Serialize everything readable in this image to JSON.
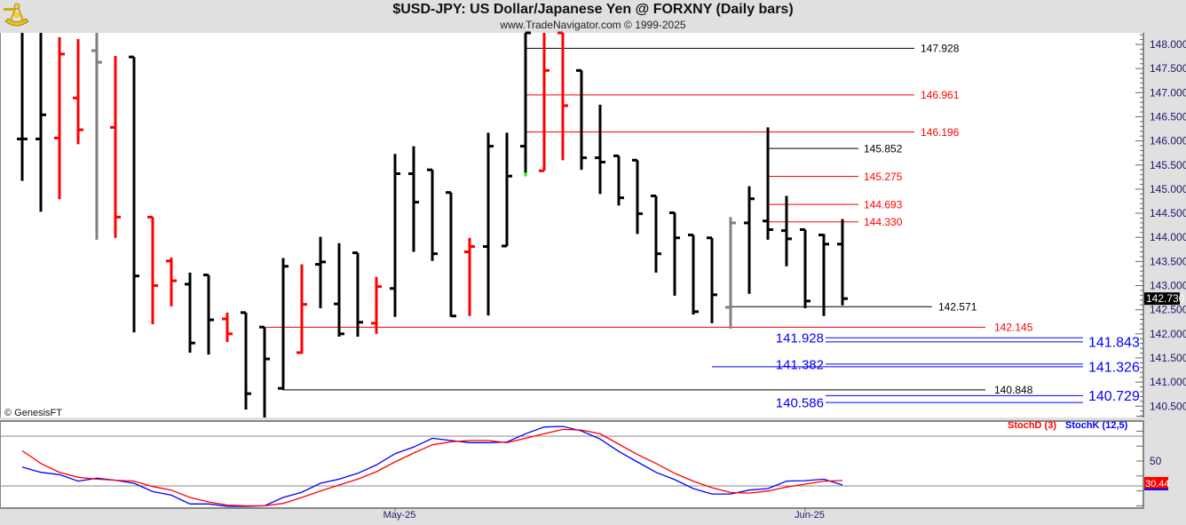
{
  "header": {
    "title": "$USD-JPY:  US Dollar/Japanese Yen @ FORXNY  (Daily bars)",
    "subtitle": "www.TradeNavigator.com © 1999-2025",
    "logo_icon": "sextant-logo-icon"
  },
  "copyright": "© GenesisFT",
  "chart_data": [
    {
      "type": "ohlc",
      "title": "$USD-JPY:  US Dollar/Japanese Yen @ FORXNY  (Daily bars)",
      "ylim": [
        140.24,
        148.24
      ],
      "y_ticks": [
        "148.000",
        "147.500",
        "147.000",
        "146.500",
        "146.000",
        "145.500",
        "145.000",
        "144.500",
        "144.000",
        "143.500",
        "143.000",
        "142.500",
        "142.000",
        "141.500",
        "141.000",
        "140.500"
      ],
      "x_tick_labels": [
        {
          "label": "May-25",
          "bar": 20
        },
        {
          "label": "Jun-25",
          "bar": 42
        }
      ],
      "last_price": "142.730",
      "colors": {
        "up": "#000000",
        "down": "#ff0000",
        "neutral": "#808080",
        "marker": "#00ff00"
      },
      "bars": [
        {
          "o": 146.04,
          "h": 148.5,
          "l": 145.17,
          "c": 146.04,
          "col": "up"
        },
        {
          "o": 146.04,
          "h": 148.5,
          "l": 144.53,
          "c": 146.54,
          "col": "up"
        },
        {
          "o": 146.06,
          "h": 148.15,
          "l": 144.79,
          "c": 147.8,
          "col": "down"
        },
        {
          "o": 146.89,
          "h": 148.11,
          "l": 145.93,
          "c": 146.23,
          "col": "down"
        },
        {
          "o": 147.87,
          "h": 148.5,
          "l": 143.95,
          "c": 147.63,
          "col": "neutral"
        },
        {
          "o": 146.28,
          "h": 147.76,
          "l": 143.99,
          "c": 144.42,
          "col": "down"
        },
        {
          "o": 147.74,
          "h": 147.74,
          "l": 142.03,
          "c": 143.2,
          "col": "up"
        },
        {
          "o": 144.42,
          "h": 144.42,
          "l": 142.2,
          "c": 143.0,
          "col": "down"
        },
        {
          "o": 143.51,
          "h": 143.58,
          "l": 142.57,
          "c": 143.1,
          "col": "down"
        },
        {
          "o": 143.03,
          "h": 143.27,
          "l": 141.61,
          "c": 141.81,
          "col": "up"
        },
        {
          "o": 143.22,
          "h": 143.22,
          "l": 141.57,
          "c": 142.29,
          "col": "up"
        },
        {
          "o": 142.31,
          "h": 142.44,
          "l": 141.83,
          "c": 142.0,
          "col": "down"
        },
        {
          "o": 142.44,
          "h": 142.44,
          "l": 140.43,
          "c": 140.76,
          "col": "up"
        },
        {
          "o": 142.14,
          "h": 142.14,
          "l": 140.24,
          "c": 141.48,
          "col": "up"
        },
        {
          "o": 140.87,
          "h": 143.57,
          "l": 140.85,
          "c": 143.4,
          "col": "up"
        },
        {
          "o": 141.61,
          "h": 143.44,
          "l": 141.59,
          "c": 142.61,
          "col": "down"
        },
        {
          "o": 143.44,
          "h": 144.01,
          "l": 142.53,
          "c": 143.49,
          "col": "up"
        },
        {
          "o": 142.62,
          "h": 143.88,
          "l": 141.94,
          "c": 142.0,
          "col": "up"
        },
        {
          "o": 143.68,
          "h": 143.68,
          "l": 141.94,
          "c": 142.24,
          "col": "up"
        },
        {
          "o": 142.22,
          "h": 143.18,
          "l": 142.0,
          "c": 142.98,
          "col": "down"
        },
        {
          "o": 142.94,
          "h": 145.73,
          "l": 142.35,
          "c": 145.32,
          "col": "up"
        },
        {
          "o": 145.32,
          "h": 145.89,
          "l": 143.7,
          "c": 144.73,
          "col": "up"
        },
        {
          "o": 145.4,
          "h": 145.4,
          "l": 143.51,
          "c": 143.66,
          "col": "up"
        },
        {
          "o": 144.93,
          "h": 144.93,
          "l": 142.35,
          "c": 142.37,
          "col": "up"
        },
        {
          "o": 143.7,
          "h": 143.99,
          "l": 142.37,
          "c": 143.81,
          "col": "down"
        },
        {
          "o": 143.81,
          "h": 146.17,
          "l": 142.38,
          "c": 145.89,
          "col": "up"
        },
        {
          "o": 143.82,
          "h": 146.17,
          "l": 143.82,
          "c": 145.27,
          "col": "up"
        },
        {
          "o": 145.89,
          "h": 148.5,
          "l": 145.27,
          "c": 148.5,
          "col": "up",
          "marker": true
        },
        {
          "o": 145.38,
          "h": 148.5,
          "l": 145.38,
          "c": 147.46,
          "col": "down"
        },
        {
          "o": 148.5,
          "h": 148.5,
          "l": 145.6,
          "c": 146.73,
          "col": "down"
        },
        {
          "o": 147.46,
          "h": 147.46,
          "l": 145.4,
          "c": 145.65,
          "col": "up"
        },
        {
          "o": 145.65,
          "h": 146.75,
          "l": 144.9,
          "c": 145.56,
          "col": "up"
        },
        {
          "o": 145.69,
          "h": 145.69,
          "l": 144.66,
          "c": 144.82,
          "col": "up"
        },
        {
          "o": 145.6,
          "h": 145.6,
          "l": 144.07,
          "c": 144.49,
          "col": "up"
        },
        {
          "o": 144.86,
          "h": 144.86,
          "l": 143.27,
          "c": 143.66,
          "col": "up"
        },
        {
          "o": 144.51,
          "h": 144.51,
          "l": 142.79,
          "c": 143.99,
          "col": "up"
        },
        {
          "o": 144.05,
          "h": 144.05,
          "l": 142.4,
          "c": 142.46,
          "col": "up"
        },
        {
          "o": 143.99,
          "h": 143.99,
          "l": 142.22,
          "c": 142.81,
          "col": "up"
        },
        {
          "o": 142.55,
          "h": 144.42,
          "l": 142.11,
          "c": 144.3,
          "col": "neutral"
        },
        {
          "o": 144.3,
          "h": 145.06,
          "l": 142.83,
          "c": 144.8,
          "col": "up"
        },
        {
          "o": 144.34,
          "h": 146.28,
          "l": 143.95,
          "c": 144.16,
          "col": "up"
        },
        {
          "o": 144.14,
          "h": 144.86,
          "l": 143.4,
          "c": 143.97,
          "col": "up"
        },
        {
          "o": 144.16,
          "h": 144.16,
          "l": 142.53,
          "c": 142.68,
          "col": "up"
        },
        {
          "o": 144.05,
          "h": 144.07,
          "l": 142.37,
          "c": 143.86,
          "col": "up"
        },
        {
          "o": 143.86,
          "h": 144.38,
          "l": 142.59,
          "c": 142.73,
          "col": "up"
        }
      ],
      "levels": [
        {
          "label": "147.928",
          "price": 147.928,
          "color": "#000000"
        },
        {
          "label": "146.961",
          "price": 146.961,
          "color": "#ff0000"
        },
        {
          "label": "146.196",
          "price": 146.196,
          "color": "#ff0000"
        },
        {
          "label": "145.852",
          "price": 145.852,
          "color": "#000000"
        },
        {
          "label": "145.275",
          "price": 145.275,
          "color": "#ff0000"
        },
        {
          "label": "144.693",
          "price": 144.693,
          "color": "#ff0000"
        },
        {
          "label": "144.330",
          "price": 144.33,
          "color": "#ff0000"
        },
        {
          "label": "142.571",
          "price": 142.571,
          "color": "#000000"
        },
        {
          "label": "142.145",
          "price": 142.145,
          "color": "#ff0000"
        },
        {
          "label": "141.928",
          "price": 141.928,
          "color": "#0000ff"
        },
        {
          "label": "141.843",
          "price": 141.843,
          "color": "#0000ff"
        },
        {
          "label": "141.382",
          "price": 141.382,
          "color": "#0000ff"
        },
        {
          "label": "141.326",
          "price": 141.326,
          "color": "#0000ff"
        },
        {
          "label": "140.848",
          "price": 140.848,
          "color": "#000000"
        },
        {
          "label": "140.729",
          "price": 140.729,
          "color": "#0000ff"
        },
        {
          "label": "140.586",
          "price": 140.586,
          "color": "#0000ff"
        }
      ]
    },
    {
      "type": "line",
      "title": "Stochastic",
      "ylim": [
        0,
        100
      ],
      "y_ticks": [
        "50"
      ],
      "reference_lines": [
        25,
        75
      ],
      "series": [
        {
          "name": "StochD (3)",
          "color": "#ff0000",
          "last_label": "30.44",
          "values": [
            60.4,
            47.6,
            38.7,
            33.7,
            31.8,
            30.7,
            29.8,
            24.4,
            20.8,
            13.4,
            8.9,
            5.7,
            5.0,
            5.0,
            7.4,
            13.4,
            19.9,
            25.9,
            31.8,
            39.3,
            49.1,
            58.0,
            66.3,
            69.4,
            70.6,
            70.6,
            68.5,
            72.9,
            77.4,
            81.8,
            81.2,
            77.4,
            67.0,
            56.6,
            47.6,
            37.7,
            29.8,
            23.2,
            18.4,
            17.8,
            19.9,
            23.8,
            26.8,
            29.8,
            30.44
          ]
        },
        {
          "name": "StochK (12,5)",
          "color": "#0000ff",
          "values": [
            44.0,
            38.7,
            36.3,
            29.8,
            32.8,
            30.7,
            27.7,
            19.3,
            15.7,
            6.9,
            6.9,
            4.5,
            4.5,
            5.0,
            13.4,
            18.7,
            27.7,
            31.8,
            37.7,
            46.1,
            57.4,
            64.0,
            72.9,
            70.6,
            68.5,
            68.5,
            69.1,
            77.4,
            84.2,
            84.8,
            80.3,
            72.1,
            59.6,
            49.1,
            38.7,
            31.3,
            22.3,
            16.9,
            16.9,
            20.8,
            22.3,
            29.8,
            30.3,
            31.8,
            25.9
          ]
        }
      ]
    }
  ]
}
